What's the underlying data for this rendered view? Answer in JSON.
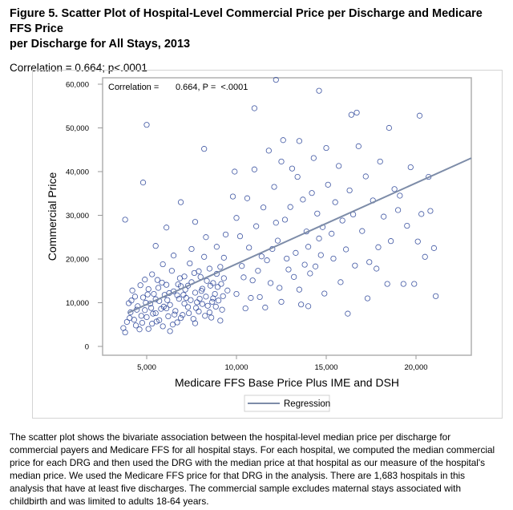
{
  "title_lines": [
    "Figure 5. Scatter Plot of Hospital-Level Commercial Price per Discharge and Medicare FFS Price",
    "per Discharge for All Stays, 2013"
  ],
  "correlation_caption": "Correlation = 0.664; p<.0001",
  "body_lines": [
    "The scatter plot shows the bivariate association between the hospital-level median price per discharge for",
    "commercial payers and Medicare FFS for all hospital stays. For each hospital, we computed the median commercial",
    "price for each DRG and then used the DRG with the median price at that hospital as our measure of the hospital's",
    "median price. We used the Medicare FFS price for that DRG in the analysis. There are 1,683 hospitals in this",
    "analysis that have at least five discharges. The commercial sample excludes maternal stays associated with",
    "childbirth and was limited to adults 18-64 years."
  ],
  "chart_data": {
    "type": "scatter",
    "xlabel": "Medicare FFS Base Price Plus IME and DSH",
    "ylabel": "Commercial Price",
    "inset_label": "Correlation =",
    "inset_value": "0.664, P =  <.0001",
    "xticks": [
      {
        "v": 5000,
        "label": "5,000"
      },
      {
        "v": 10000,
        "label": "10,000"
      },
      {
        "v": 15000,
        "label": "15,000"
      },
      {
        "v": 20000,
        "label": "20,000"
      }
    ],
    "yticks": [
      {
        "v": 0,
        "label": "0"
      },
      {
        "v": 10000,
        "label": "10,000"
      },
      {
        "v": 20000,
        "label": "20,000"
      },
      {
        "v": 30000,
        "label": "30,000"
      },
      {
        "v": 40000,
        "label": "40,000"
      },
      {
        "v": 50000,
        "label": "50,000"
      },
      {
        "v": 60000,
        "label": "60,000"
      }
    ],
    "xlim": [
      2500,
      23100
    ],
    "ylim": [
      -2000,
      61500
    ],
    "grid": false,
    "legend": {
      "position": "bottom",
      "entries": [
        "Regression"
      ]
    },
    "colors": {
      "points": "#1f3a93",
      "regression": "#7d8ca8"
    },
    "regression": {
      "x": [
        3970,
        23080
      ],
      "y": [
        7700,
        43100
      ]
    },
    "points_note_count": 1683,
    "points": [
      [
        3700,
        4200
      ],
      [
        3900,
        5600
      ],
      [
        4100,
        7800
      ],
      [
        4300,
        6100
      ],
      [
        4500,
        9200
      ],
      [
        4600,
        3900
      ],
      [
        4800,
        11200
      ],
      [
        4900,
        8300
      ],
      [
        5000,
        6700
      ],
      [
        5100,
        13100
      ],
      [
        5200,
        9800
      ],
      [
        5300,
        5200
      ],
      [
        5400,
        12000
      ],
      [
        5500,
        7600
      ],
      [
        5600,
        15200
      ],
      [
        5700,
        10400
      ],
      [
        5800,
        8600
      ],
      [
        5900,
        4600
      ],
      [
        6000,
        11800
      ],
      [
        6100,
        14100
      ],
      [
        6200,
        6900
      ],
      [
        6300,
        9500
      ],
      [
        6400,
        17300
      ],
      [
        6500,
        12600
      ],
      [
        6600,
        8100
      ],
      [
        6700,
        5500
      ],
      [
        6800,
        10900
      ],
      [
        6900,
        13800
      ],
      [
        7000,
        7200
      ],
      [
        7100,
        16000
      ],
      [
        7200,
        11100
      ],
      [
        7300,
        9000
      ],
      [
        7400,
        19000
      ],
      [
        7500,
        14700
      ],
      [
        7600,
        6300
      ],
      [
        7700,
        12300
      ],
      [
        7800,
        10100
      ],
      [
        7900,
        8000
      ],
      [
        8000,
        15900
      ],
      [
        8100,
        13200
      ],
      [
        8200,
        20500
      ],
      [
        8300,
        11400
      ],
      [
        8400,
        9300
      ],
      [
        8500,
        17800
      ],
      [
        8600,
        6600
      ],
      [
        8700,
        14500
      ],
      [
        8800,
        12000
      ],
      [
        8900,
        22800
      ],
      [
        9000,
        10500
      ],
      [
        9100,
        18200
      ],
      [
        9200,
        8400
      ],
      [
        9300,
        15600
      ],
      [
        9400,
        25600
      ],
      [
        9500,
        12800
      ],
      [
        3800,
        3200
      ],
      [
        4000,
        9900
      ],
      [
        4200,
        12800
      ],
      [
        4400,
        4800
      ],
      [
        4700,
        7000
      ],
      [
        4900,
        15300
      ],
      [
        5100,
        4000
      ],
      [
        5300,
        16500
      ],
      [
        5500,
        10800
      ],
      [
        5700,
        6000
      ],
      [
        5900,
        18800
      ],
      [
        6100,
        8700
      ],
      [
        6300,
        3500
      ],
      [
        6500,
        20800
      ],
      [
        6700,
        11700
      ],
      [
        6900,
        6500
      ],
      [
        7100,
        9800
      ],
      [
        7300,
        13900
      ],
      [
        7500,
        22300
      ],
      [
        7700,
        5300
      ],
      [
        7900,
        17200
      ],
      [
        8100,
        9700
      ],
      [
        8300,
        25000
      ],
      [
        8500,
        7800
      ],
      [
        8700,
        11000
      ],
      [
        8900,
        16600
      ],
      [
        9100,
        5900
      ],
      [
        9300,
        20300
      ],
      [
        4150,
        10500
      ],
      [
        4450,
        8400
      ],
      [
        4750,
        5400
      ],
      [
        5050,
        11900
      ],
      [
        5350,
        7500
      ],
      [
        5650,
        13400
      ],
      [
        5950,
        9100
      ],
      [
        6250,
        12200
      ],
      [
        6550,
        7300
      ],
      [
        6850,
        15600
      ],
      [
        7150,
        13000
      ],
      [
        7450,
        10600
      ],
      [
        7750,
        8800
      ],
      [
        8050,
        12700
      ],
      [
        8350,
        15000
      ],
      [
        8650,
        10200
      ],
      [
        8950,
        13600
      ],
      [
        9250,
        11500
      ],
      [
        4050,
        6500
      ],
      [
        4350,
        11400
      ],
      [
        4650,
        14000
      ],
      [
        4950,
        10000
      ],
      [
        5250,
        8800
      ],
      [
        5550,
        5700
      ],
      [
        5850,
        14600
      ],
      [
        6150,
        10600
      ],
      [
        6450,
        5000
      ],
      [
        6750,
        14200
      ],
      [
        7050,
        11800
      ],
      [
        7350,
        7600
      ],
      [
        7650,
        16800
      ],
      [
        7950,
        10900
      ],
      [
        8250,
        7000
      ],
      [
        8550,
        13900
      ],
      [
        8850,
        9100
      ],
      [
        9150,
        14300
      ],
      [
        4800,
        37500
      ],
      [
        3800,
        29000
      ],
      [
        5000,
        50700
      ],
      [
        8200,
        45200
      ],
      [
        6900,
        33000
      ],
      [
        6100,
        27200
      ],
      [
        7700,
        28500
      ],
      [
        5500,
        23000
      ],
      [
        9800,
        34300
      ],
      [
        10000,
        29400
      ],
      [
        10000,
        12000
      ],
      [
        10300,
        18400
      ],
      [
        10500,
        8700
      ],
      [
        10700,
        22600
      ],
      [
        10900,
        15100
      ],
      [
        11100,
        27500
      ],
      [
        11300,
        11300
      ],
      [
        11500,
        31800
      ],
      [
        11700,
        19700
      ],
      [
        11900,
        14500
      ],
      [
        12100,
        36500
      ],
      [
        12300,
        24200
      ],
      [
        12500,
        10200
      ],
      [
        12700,
        29000
      ],
      [
        12900,
        17600
      ],
      [
        13100,
        40700
      ],
      [
        13300,
        21400
      ],
      [
        13500,
        13000
      ],
      [
        13700,
        33600
      ],
      [
        13900,
        26300
      ],
      [
        14100,
        16700
      ],
      [
        14300,
        43100
      ],
      [
        14500,
        30400
      ],
      [
        14700,
        20900
      ],
      [
        14900,
        12100
      ],
      [
        15100,
        37000
      ],
      [
        10200,
        25200
      ],
      [
        10600,
        33900
      ],
      [
        11000,
        40500
      ],
      [
        11400,
        20600
      ],
      [
        11800,
        44800
      ],
      [
        12200,
        28300
      ],
      [
        12600,
        47200
      ],
      [
        13000,
        31900
      ],
      [
        13400,
        38800
      ],
      [
        13800,
        18700
      ],
      [
        14200,
        35100
      ],
      [
        14600,
        24700
      ],
      [
        15000,
        45400
      ],
      [
        10400,
        15800
      ],
      [
        10800,
        11100
      ],
      [
        11200,
        17300
      ],
      [
        11600,
        8900
      ],
      [
        12000,
        22300
      ],
      [
        12400,
        13400
      ],
      [
        12800,
        20100
      ],
      [
        13200,
        15900
      ],
      [
        13600,
        9600
      ],
      [
        14000,
        22800
      ],
      [
        14400,
        18300
      ],
      [
        14800,
        27300
      ],
      [
        11000,
        54500
      ],
      [
        12200,
        61000
      ],
      [
        14600,
        58500
      ],
      [
        12500,
        42300
      ],
      [
        13500,
        47000
      ],
      [
        9900,
        40000
      ],
      [
        15300,
        25800
      ],
      [
        15500,
        33000
      ],
      [
        15700,
        41300
      ],
      [
        15900,
        28800
      ],
      [
        16100,
        22200
      ],
      [
        16300,
        35700
      ],
      [
        16400,
        53000
      ],
      [
        16700,
        53500
      ],
      [
        16200,
        7500
      ],
      [
        16500,
        30200
      ],
      [
        16800,
        45800
      ],
      [
        17000,
        26400
      ],
      [
        17200,
        38900
      ],
      [
        17400,
        19300
      ],
      [
        17600,
        33400
      ],
      [
        17800,
        17800
      ],
      [
        18000,
        42300
      ],
      [
        18200,
        29700
      ],
      [
        18400,
        14300
      ],
      [
        18500,
        50000
      ],
      [
        18600,
        24100
      ],
      [
        18800,
        36000
      ],
      [
        19000,
        31200
      ],
      [
        19300,
        14300
      ],
      [
        19500,
        27600
      ],
      [
        19700,
        41000
      ],
      [
        19900,
        14300
      ],
      [
        20100,
        24000
      ],
      [
        20200,
        52800
      ],
      [
        20300,
        30300
      ],
      [
        20500,
        20500
      ],
      [
        20700,
        38800
      ],
      [
        20800,
        31000
      ],
      [
        21000,
        22500
      ],
      [
        21100,
        11500
      ],
      [
        15400,
        20100
      ],
      [
        15800,
        14700
      ],
      [
        16600,
        18500
      ],
      [
        17300,
        11000
      ],
      [
        14000,
        9200
      ],
      [
        17900,
        22700
      ],
      [
        19100,
        34500
      ]
    ]
  }
}
